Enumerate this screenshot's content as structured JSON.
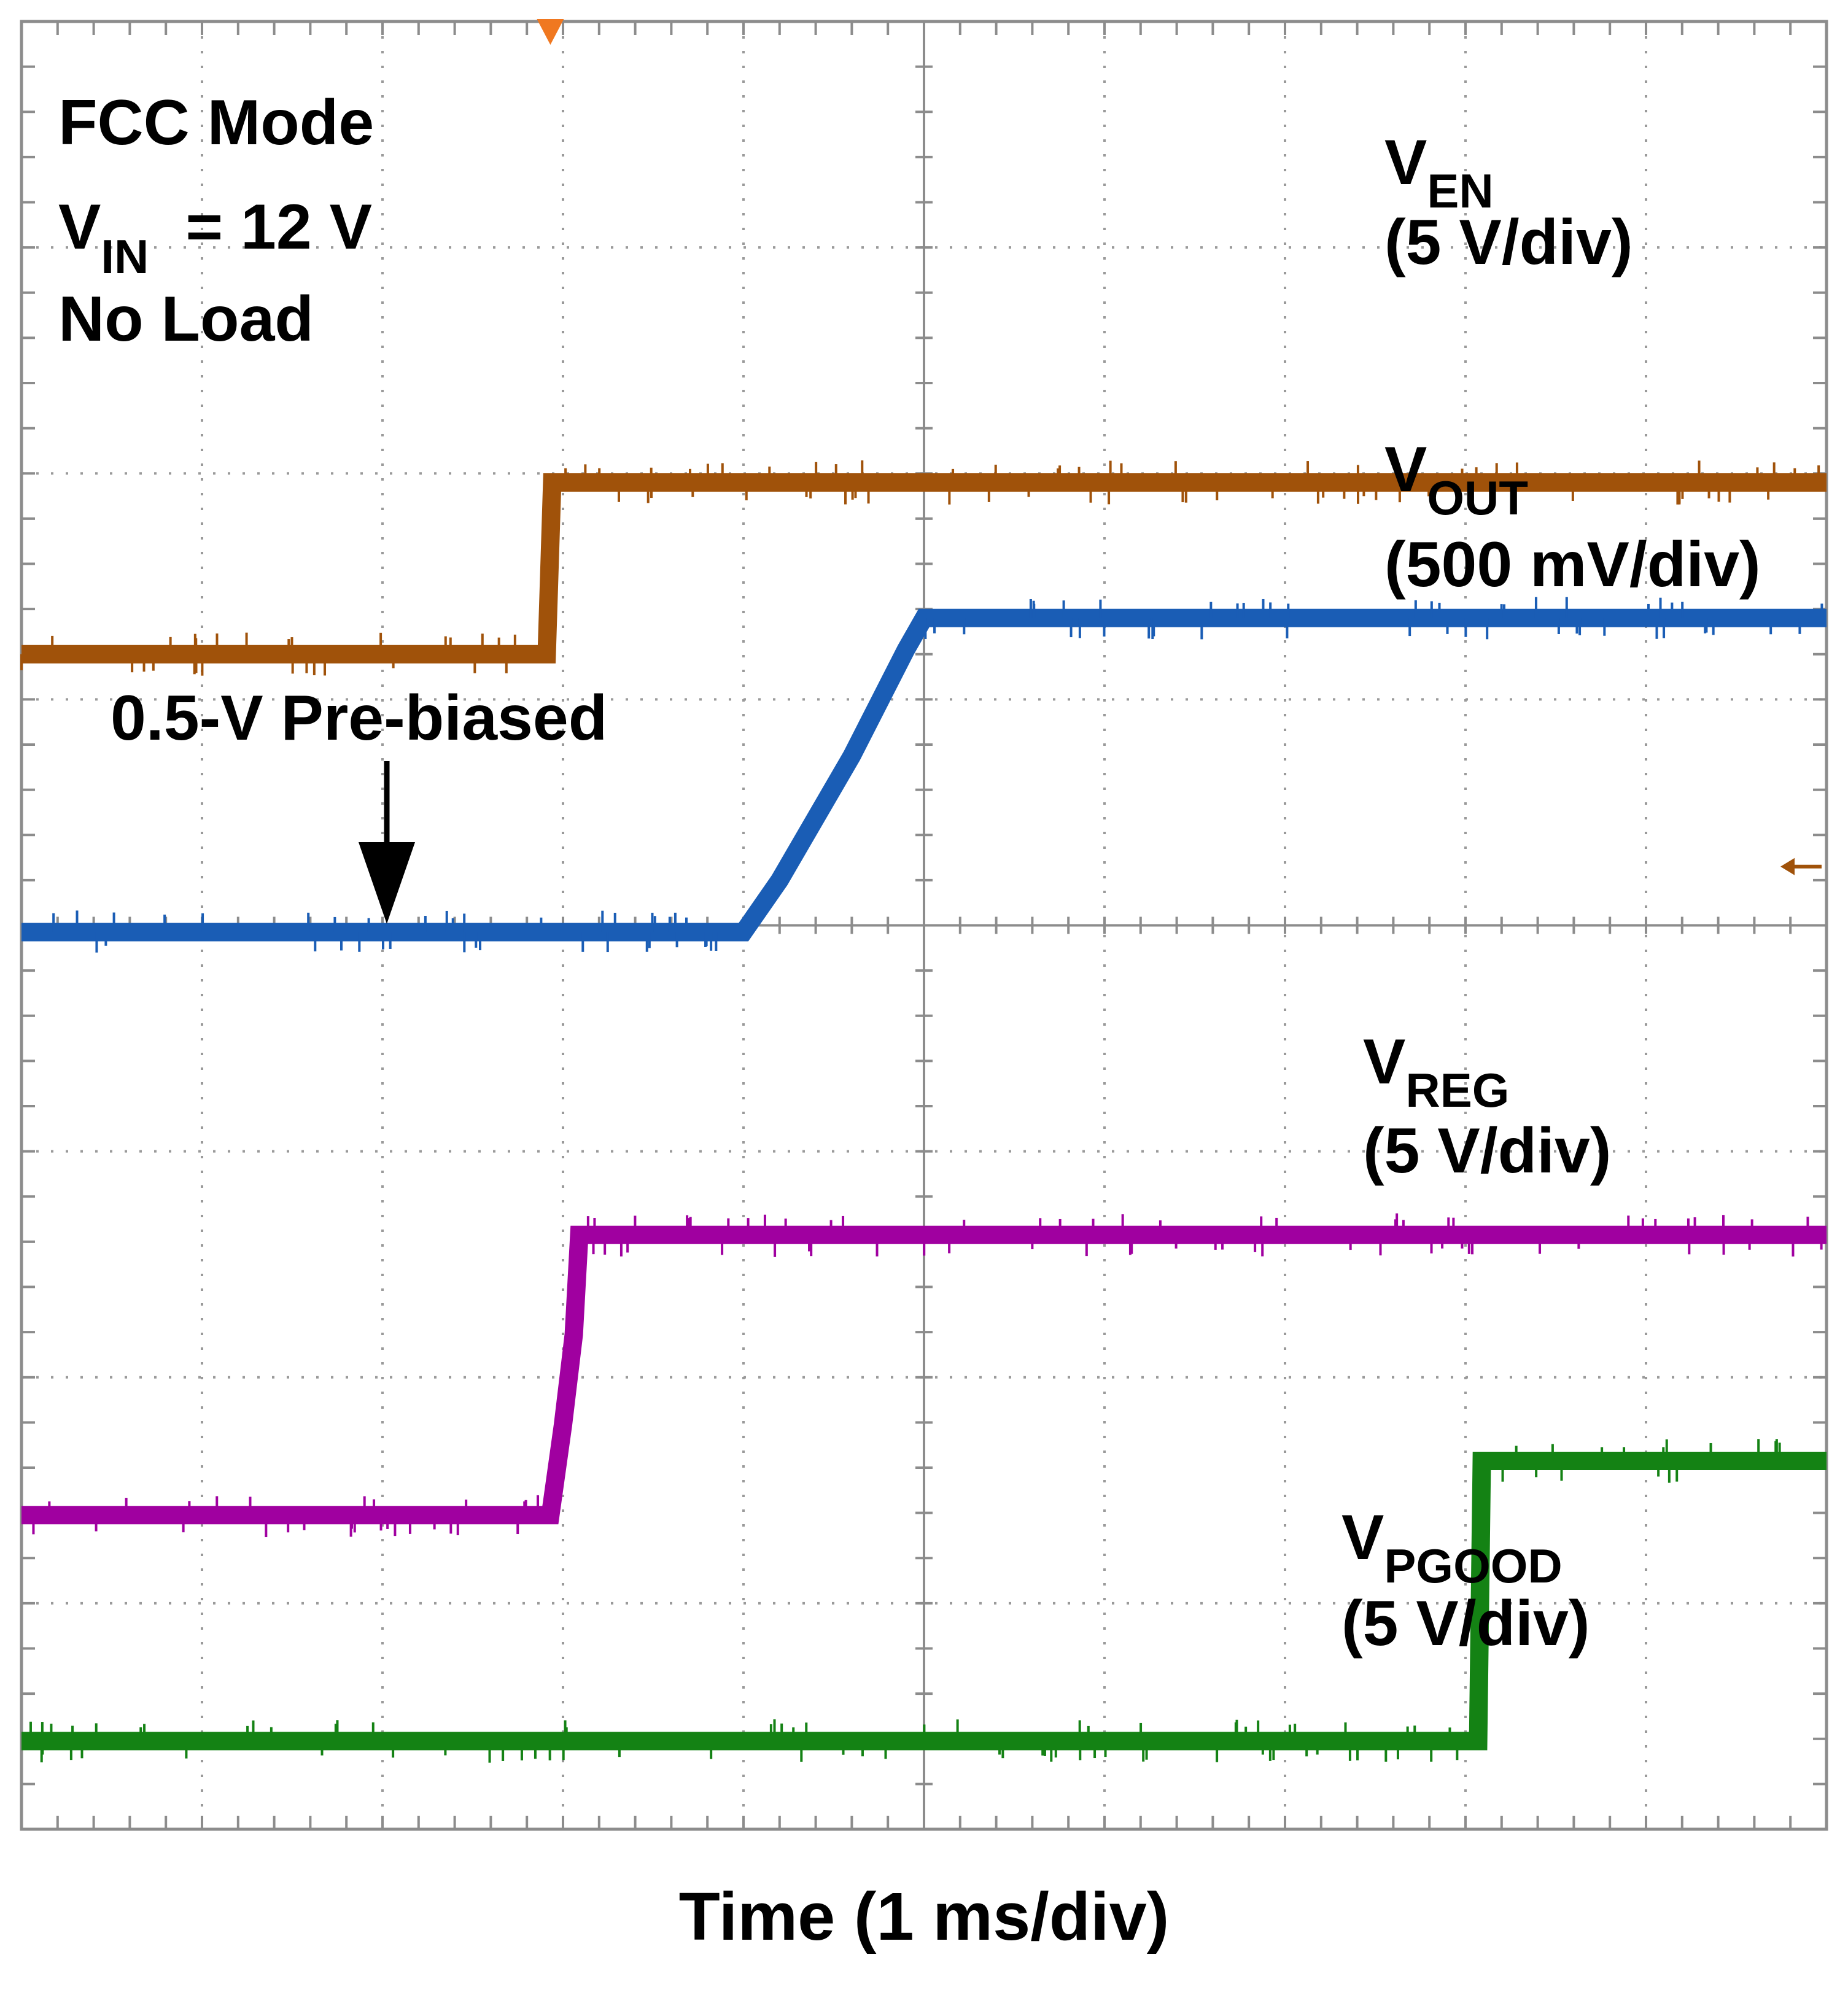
{
  "chart_data": {
    "type": "line",
    "title": "",
    "xlabel": "Time (1 ms/div)",
    "ylabel": "",
    "x_unit": "ms",
    "x_range": [
      0,
      10
    ],
    "x_divisions": 10,
    "y_divisions": 8,
    "grid": true,
    "trigger_marker_ms": 2.93,
    "conditions": {
      "mode": "FCC Mode",
      "vin_prefix": "V",
      "vin_sub": "IN",
      "vin_value": "= 12 V",
      "load": "No Load"
    },
    "annotation": "0.5-V Pre-biased",
    "series": [
      {
        "name": "VEN",
        "label_main": "V",
        "label_sub": "EN",
        "scale": "(5 V/div)",
        "color": "#A0520A",
        "x": [
          0,
          2.91,
          2.94,
          10
        ],
        "y_div": [
          5.2,
          5.2,
          5.96,
          5.96
        ]
      },
      {
        "name": "VOUT",
        "label_main": "V",
        "label_sub": "OUT",
        "scale": "(500 mV/div)",
        "color": "#1A5DB5",
        "x": [
          0,
          4.0,
          4.2,
          4.6,
          4.9,
          5.0,
          10
        ],
        "y_div": [
          3.97,
          3.97,
          4.2,
          4.75,
          5.22,
          5.36,
          5.36
        ]
      },
      {
        "name": "VREG",
        "label_main": "V",
        "label_sub": "REG",
        "scale": "(5 V/div)",
        "color": "#A000A0",
        "x": [
          0,
          2.93,
          3.0,
          3.06,
          3.09,
          10
        ],
        "y_div": [
          1.39,
          1.39,
          1.79,
          2.19,
          2.63,
          2.63
        ]
      },
      {
        "name": "VPGOOD",
        "label_main": "V",
        "label_sub": "PGOOD",
        "scale": "(5 V/div)",
        "color": "#148214",
        "x": [
          0,
          8.07,
          8.09,
          10
        ],
        "y_div": [
          0.39,
          0.39,
          1.63,
          1.63
        ]
      }
    ]
  }
}
